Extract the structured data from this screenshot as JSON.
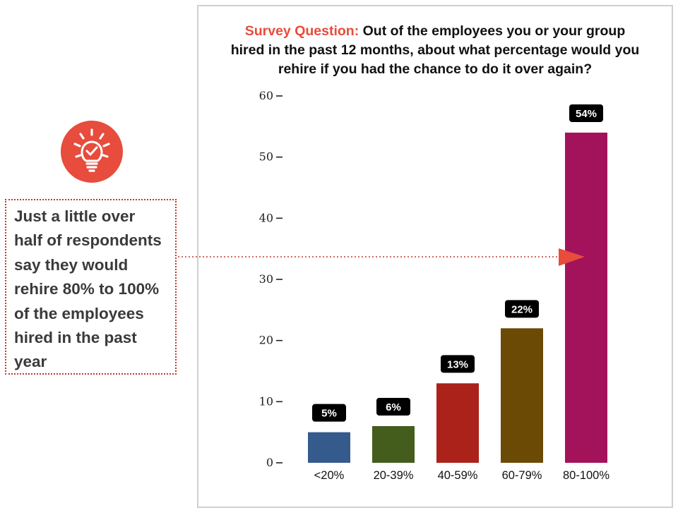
{
  "callout": {
    "lines": [
      "Just a little over",
      "half of respondents",
      "say they would",
      "rehire 80% to 100%",
      "of the employees",
      "hired in the past",
      "year"
    ]
  },
  "colors": {
    "accent": "#e74c3c",
    "badge": "#e74c3c",
    "callout_border": "#c0392b",
    "label_bg": "#000000"
  },
  "chart_data": {
    "type": "bar",
    "title_prefix": "Survey Question:",
    "title_lines": [
      "Out of the employees you or your group",
      "hired in the past 12 months, about what percentage would you",
      "rehire if you had the chance to do it over again?"
    ],
    "categories": [
      "<20%",
      "20-39%",
      "40-59%",
      "60-79%",
      "80-100%"
    ],
    "values": [
      5,
      6,
      13,
      22,
      54
    ],
    "data_labels": [
      "5%",
      "6%",
      "13%",
      "22%",
      "54%"
    ],
    "bar_colors": [
      "#355b8c",
      "#445c1c",
      "#aa2219",
      "#6b4a06",
      "#a3135b"
    ],
    "ylim": [
      0,
      60
    ],
    "yticks": [
      0,
      10,
      20,
      30,
      40,
      50,
      60
    ],
    "xlabel": "",
    "ylabel": "",
    "grid": false,
    "legend": "none"
  }
}
